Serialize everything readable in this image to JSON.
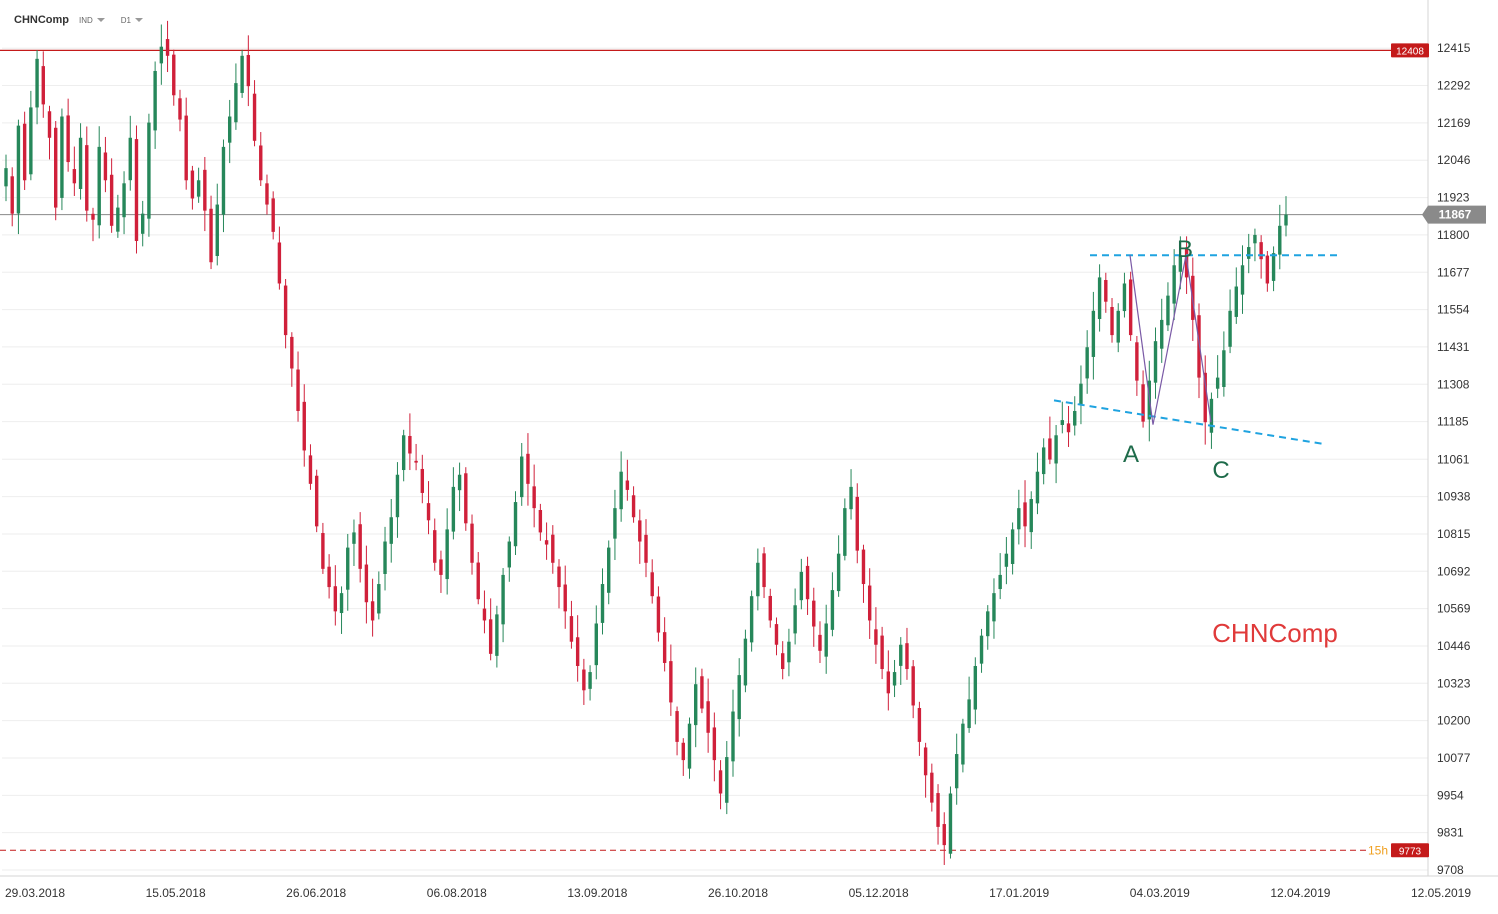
{
  "toolbar": {
    "symbol": "CHNComp",
    "category": "IND",
    "timeframe": "D1"
  },
  "colors": {
    "bull": "#26875a",
    "bear": "#d0203a",
    "resistance": "#c41a1a",
    "price_line": "#888888",
    "support_dash": "#c41a1a",
    "pattern_line": "#1fa3e0",
    "zigzag": "#7a5aa6",
    "label_text": "#1e6b4a",
    "watermark": "#e03a3a"
  },
  "chart_data": {
    "type": "candlestick",
    "symbol": "CHNComp",
    "watermark": "CHNComp",
    "ylim": [
      9708,
      12475
    ],
    "y_ticks": [
      12415,
      12292,
      12169,
      12046,
      11923,
      11800,
      11677,
      11554,
      11431,
      11308,
      11185,
      11061,
      10938,
      10815,
      10692,
      10569,
      10446,
      10323,
      10200,
      10077,
      9954,
      9831,
      9708
    ],
    "x_ticks": [
      "29.03.2018",
      "15.05.2018",
      "26.06.2018",
      "06.08.2018",
      "13.09.2018",
      "26.10.2018",
      "05.12.2018",
      "17.01.2019",
      "04.03.2019",
      "12.04.2019",
      "12.05.2019"
    ],
    "levels": {
      "resistance": {
        "value": 12408,
        "label": "12408"
      },
      "last_price": {
        "value": 11867,
        "label": "11867"
      },
      "support": {
        "value": 9773,
        "label": "9773",
        "tag": "15h"
      }
    },
    "pattern_points": [
      {
        "name": "A",
        "value": 11175
      },
      {
        "name": "B",
        "value": 11733
      },
      {
        "name": "C",
        "value": 11183
      }
    ],
    "closes": [
      12020,
      11870,
      12160,
      11980,
      12220,
      12380,
      12230,
      12120,
      11890,
      12190,
      12040,
      11970,
      12120,
      11880,
      11850,
      12090,
      11980,
      11830,
      11890,
      11970,
      12120,
      11780,
      11870,
      12170,
      12340,
      12420,
      12390,
      12260,
      12180,
      11980,
      11920,
      11980,
      11880,
      11710,
      11900,
      12090,
      12190,
      12300,
      12390,
      12290,
      12110,
      11980,
      11900,
      11810,
      11640,
      11470,
      11360,
      11220,
      11090,
      10980,
      10840,
      10700,
      10640,
      10560,
      10620,
      10770,
      10820,
      10700,
      10590,
      10530,
      10650,
      10790,
      10870,
      11010,
      11140,
      11080,
      11050,
      10950,
      10860,
      10720,
      10680,
      10830,
      10970,
      11010,
      10850,
      10720,
      10600,
      10530,
      10420,
      10550,
      10680,
      10790,
      10920,
      11070,
      10980,
      10900,
      10820,
      10780,
      10720,
      10640,
      10560,
      10460,
      10380,
      10300,
      10360,
      10520,
      10650,
      10770,
      10900,
      11020,
      10960,
      10870,
      10790,
      10720,
      10610,
      10490,
      10390,
      10260,
      10130,
      10070,
      10190,
      10320,
      10240,
      10160,
      10070,
      9960,
      10080,
      10230,
      10350,
      10470,
      10610,
      10720,
      10640,
      10530,
      10450,
      10370,
      10460,
      10580,
      10690,
      10600,
      10510,
      10430,
      10520,
      10630,
      10750,
      10900,
      10970,
      10760,
      10650,
      10530,
      10450,
      10370,
      10290,
      10360,
      10450,
      10370,
      10250,
      10130,
      10020,
      9930,
      9850,
      9790,
      9960,
      10090,
      10190,
      10270,
      10380,
      10480,
      10560,
      10620,
      10680,
      10750,
      10830,
      10900,
      10840,
      10930,
      11020,
      11100,
      11060,
      11140,
      11190,
      11150,
      11220,
      11310,
      11430,
      11550,
      11660,
      11580,
      11470,
      11550,
      11640,
      11470,
      11320,
      11185,
      11320,
      11450,
      11520,
      11600,
      11700,
      11733,
      11660,
      11520,
      11330,
      11183,
      11260,
      11330,
      11420,
      11550,
      11630,
      11700,
      11760,
      11800,
      11720,
      11640,
      11740,
      11830,
      11867
    ]
  }
}
